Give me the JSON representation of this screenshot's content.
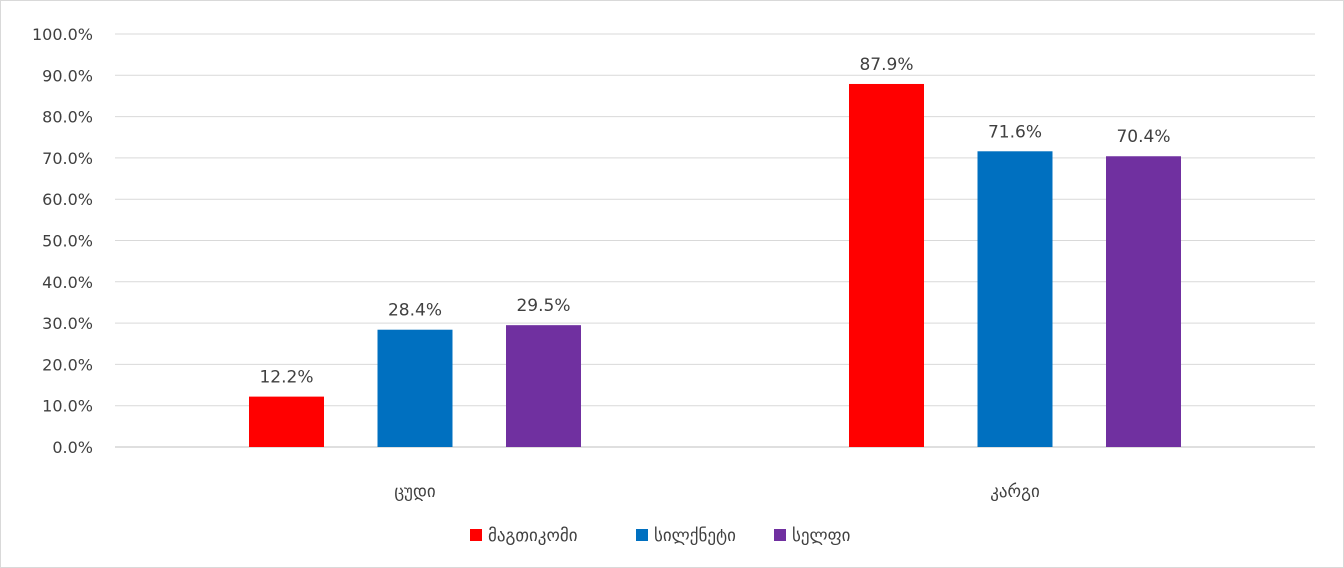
{
  "chart_data": {
    "type": "bar",
    "categories": [
      "ცუდი",
      "კარგი"
    ],
    "series": [
      {
        "name": "მაგთიკომი",
        "values": [
          12.2,
          87.9
        ],
        "color": "#ff0000"
      },
      {
        "name": "სილქნეტი",
        "values": [
          28.4,
          71.6
        ],
        "color": "#0070c0"
      },
      {
        "name": "სელფი",
        "values": [
          29.5,
          70.4
        ],
        "color": "#7030a0"
      }
    ],
    "value_labels": [
      [
        "12.2%",
        "87.9%"
      ],
      [
        "28.4%",
        "71.6%"
      ],
      [
        "29.5%",
        "70.4%"
      ]
    ],
    "ylim": [
      0,
      100
    ],
    "yticks": [
      "0.0%",
      "10.0%",
      "20.0%",
      "30.0%",
      "40.0%",
      "50.0%",
      "60.0%",
      "70.0%",
      "80.0%",
      "90.0%",
      "100.0%"
    ],
    "grid": true,
    "legend_position": "bottom"
  }
}
